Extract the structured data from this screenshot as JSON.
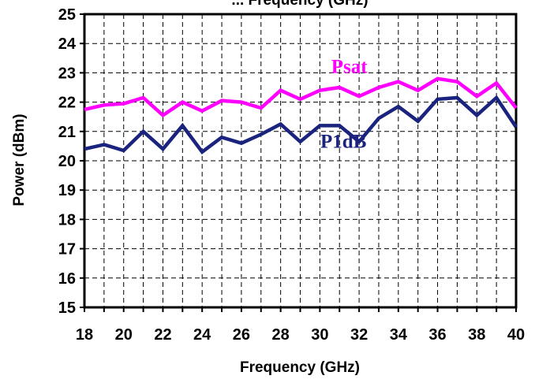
{
  "chart_data": {
    "type": "line",
    "title": "... Frequency (GHz)",
    "xlabel": "Frequency (GHz)",
    "ylabel": "Power (dBm)",
    "xlim": [
      18,
      40
    ],
    "ylim": [
      15,
      25
    ],
    "x_ticks": [
      "18",
      "20",
      "22",
      "24",
      "26",
      "28",
      "30",
      "32",
      "34",
      "36",
      "38",
      "40"
    ],
    "y_ticks": [
      "15",
      "16",
      "17",
      "18",
      "19",
      "20",
      "21",
      "22",
      "23",
      "24",
      "25"
    ],
    "grid": true,
    "x": [
      18,
      19,
      20,
      21,
      22,
      23,
      24,
      25,
      26,
      27,
      28,
      29,
      30,
      31,
      32,
      33,
      34,
      35,
      36,
      37,
      38,
      39,
      40
    ],
    "series": [
      {
        "name": "Psat",
        "color": "#ff00ff",
        "values": [
          21.75,
          21.9,
          21.95,
          22.15,
          21.55,
          22.0,
          21.7,
          22.05,
          22.0,
          21.8,
          22.4,
          22.1,
          22.4,
          22.5,
          22.2,
          22.5,
          22.7,
          22.4,
          22.8,
          22.7,
          22.2,
          22.65,
          21.8
        ]
      },
      {
        "name": "P1dB",
        "color": "#1a237e",
        "values": [
          20.4,
          20.55,
          20.35,
          21.0,
          20.4,
          21.2,
          20.3,
          20.8,
          20.6,
          20.9,
          21.25,
          20.65,
          21.2,
          21.2,
          20.65,
          21.45,
          21.85,
          21.35,
          22.1,
          22.15,
          21.55,
          22.15,
          21.15
        ]
      }
    ],
    "annotations": [
      {
        "text": "Psat",
        "x": 31.5,
        "y": 23.0
      },
      {
        "text": "P1dB",
        "x": 31.2,
        "y": 20.45
      }
    ]
  }
}
